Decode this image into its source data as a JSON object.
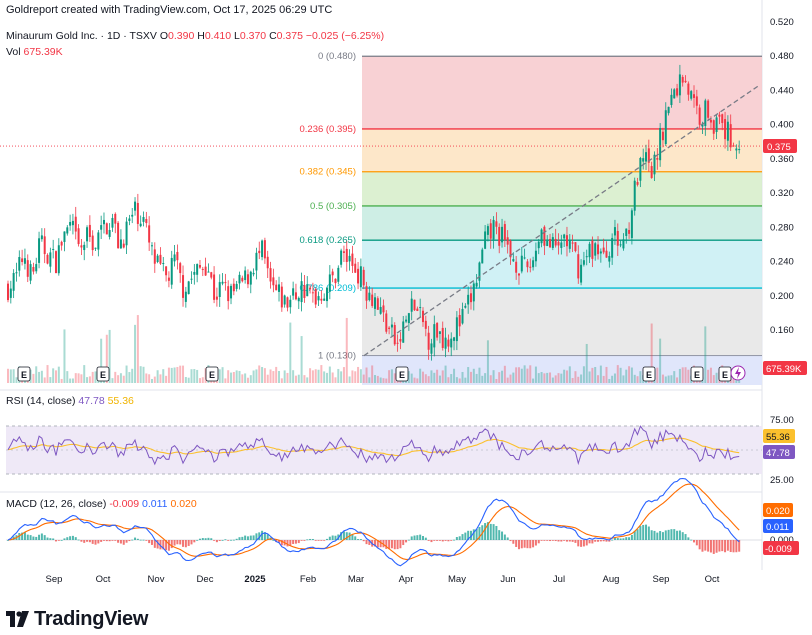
{
  "header": {
    "credit": "Goldreport created with TradingView.com, Oct 17, 2025 06:29 UTC"
  },
  "legend": {
    "symbol": "Minaurum Gold Inc. · 1D · TSXV",
    "o_label": "O",
    "o_value": "0.390",
    "h_label": "H",
    "h_value": "0.410",
    "l_label": "L",
    "l_value": "0.370",
    "c_label": "C",
    "c_value": "0.375",
    "change": "−0.025 (−6.25%)",
    "vol_label": "Vol",
    "vol_value": "675.39K"
  },
  "colors": {
    "up": "#089981",
    "down": "#f23645",
    "rsi": "#7e57c2",
    "rsi_ma": "#fbc02d",
    "macd": "#2962ff",
    "signal": "#ff6d00"
  },
  "brand": {
    "name": "TradingView",
    "logo": "tradingview-logo-icon"
  },
  "chart_data": [
    {
      "type": "candlestick",
      "name": "price",
      "ylim": [
        0.1,
        0.52
      ],
      "y_ticks": [
        "0.520",
        "0.480",
        "0.440",
        "0.400",
        "0.360",
        "0.320",
        "0.280",
        "0.240",
        "0.200",
        "0.160"
      ],
      "x_labels": [
        "Sep",
        "Oct",
        "Nov",
        "Dec",
        "2025",
        "Feb",
        "Mar",
        "Apr",
        "May",
        "Jun",
        "Jul",
        "Aug",
        "Sep",
        "Oct"
      ],
      "last_price": 0.375,
      "last_price_label": "0.375",
      "close_path": [
        0.21,
        0.22,
        0.25,
        0.22,
        0.26,
        0.25,
        0.24,
        0.27,
        0.28,
        0.25,
        0.27,
        0.26,
        0.28,
        0.29,
        0.26,
        0.28,
        0.3,
        0.29,
        0.25,
        0.23,
        0.22,
        0.24,
        0.21,
        0.22,
        0.23,
        0.24,
        0.2,
        0.21,
        0.2,
        0.21,
        0.22,
        0.24,
        0.25,
        0.21,
        0.2,
        0.19,
        0.2,
        0.21,
        0.2,
        0.2,
        0.21,
        0.22,
        0.25,
        0.24,
        0.23,
        0.21,
        0.2,
        0.18,
        0.16,
        0.14,
        0.17,
        0.19,
        0.17,
        0.15,
        0.16,
        0.15,
        0.16,
        0.17,
        0.19,
        0.22,
        0.26,
        0.28,
        0.27,
        0.25,
        0.24,
        0.23,
        0.24,
        0.28,
        0.26,
        0.25,
        0.27,
        0.25,
        0.23,
        0.25,
        0.26,
        0.24,
        0.27,
        0.26,
        0.28,
        0.33,
        0.36,
        0.34,
        0.38,
        0.42,
        0.44,
        0.46,
        0.43,
        0.41,
        0.42,
        0.4,
        0.395,
        0.385,
        0.375
      ],
      "fibonacci": [
        {
          "level": "0 (0.480)",
          "price": 0.48,
          "color": "#787b86"
        },
        {
          "level": "0.236 (0.395)",
          "price": 0.395,
          "color": "#f23645"
        },
        {
          "level": "0.382 (0.345)",
          "price": 0.345,
          "color": "#ff9800"
        },
        {
          "level": "0.5 (0.305)",
          "price": 0.305,
          "color": "#4caf50"
        },
        {
          "level": "0.618 (0.265)",
          "price": 0.265,
          "color": "#089981"
        },
        {
          "level": "0.786 (0.209)",
          "price": 0.209,
          "color": "#00bcd4"
        },
        {
          "level": "1 (0.130)",
          "price": 0.13,
          "color": "#787b86"
        }
      ],
      "volume_label": "675.39K"
    },
    {
      "type": "line",
      "name": "RSI (14, close)",
      "label": "RSI",
      "params": "(14, close)",
      "series": [
        {
          "name": "RSI",
          "last": "47.78",
          "color": "#7e57c2"
        },
        {
          "name": "RSI-based MA",
          "last": "55.36",
          "color": "#fbc02d"
        }
      ],
      "ylim": [
        20,
        85
      ],
      "y_ticks": [
        "75.00",
        "25.00"
      ],
      "bands": [
        30,
        70
      ]
    },
    {
      "type": "line",
      "name": "MACD (12, 26, close)",
      "label": "MACD",
      "params": "(12, 26, close)",
      "series": [
        {
          "name": "Histogram",
          "last": "-0.009",
          "color": "#f23645"
        },
        {
          "name": "MACD",
          "last": "0.011",
          "color": "#2962ff"
        },
        {
          "name": "Signal",
          "last": "0.020",
          "color": "#ff6d00"
        }
      ],
      "ylim": [
        -0.03,
        0.03
      ],
      "y_ticks": [
        "0.000"
      ]
    }
  ]
}
